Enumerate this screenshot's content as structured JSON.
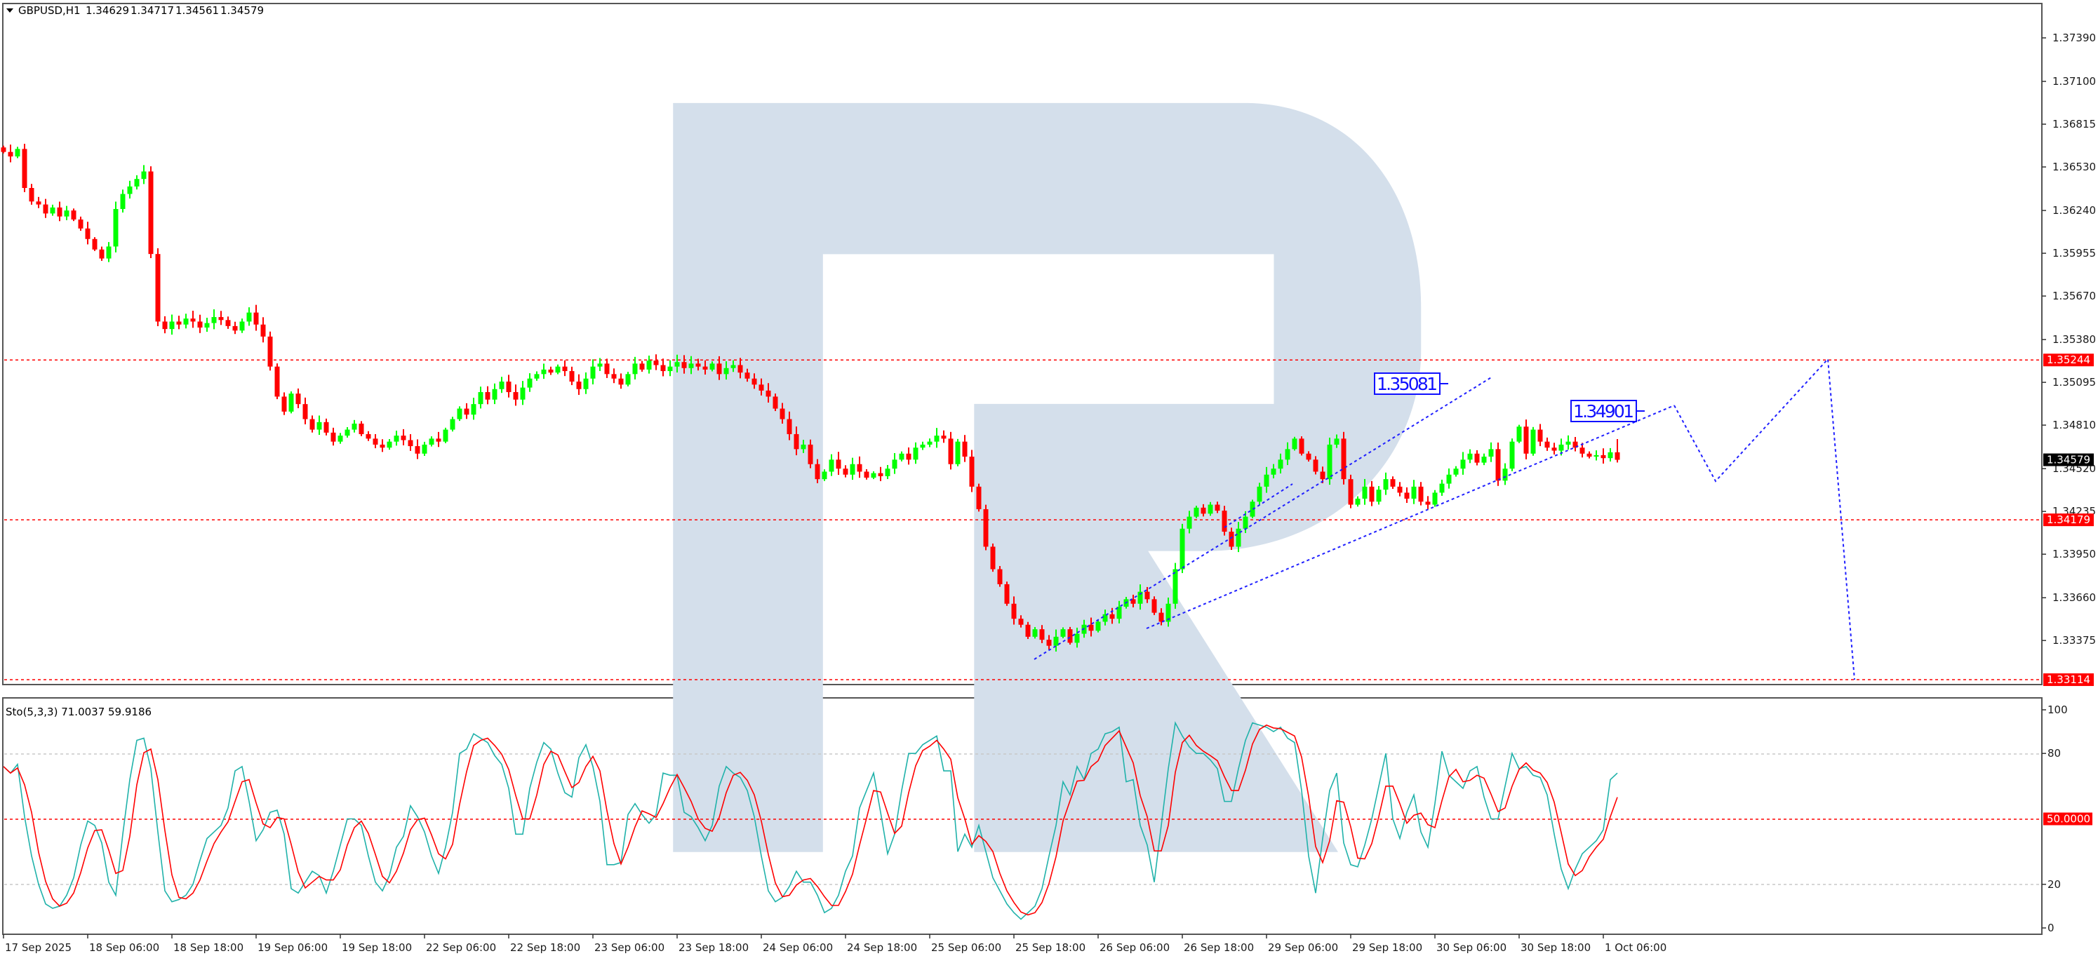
{
  "header": {
    "symbol": "GBPUSD,H1",
    "open": "1.34629",
    "high": "1.34717",
    "low": "1.34561",
    "close": "1.34579"
  },
  "colors": {
    "bull": "#00ff00",
    "bear": "#ff0000",
    "level": "#ff0000",
    "forecast": "#2020ff",
    "stoch_k": "#20b2aa",
    "stoch_d": "#ff0000",
    "watermark": "#d4dfeb"
  },
  "price_axis": {
    "ticks": [
      "1.37390",
      "1.37100",
      "1.36815",
      "1.36530",
      "1.36240",
      "1.35955",
      "1.35670",
      "1.35380",
      "1.35095",
      "1.34810",
      "1.34520",
      "1.34235",
      "1.33950",
      "1.33660",
      "1.33375"
    ],
    "current_price": "1.34579"
  },
  "levels": [
    {
      "price": "1.35244"
    },
    {
      "price": "1.34179"
    },
    {
      "price": "1.33114"
    }
  ],
  "forecast_labels": [
    "1.35081",
    "1.34901"
  ],
  "time_axis": {
    "labels": [
      "17 Sep 2025",
      "18 Sep 06:00",
      "18 Sep 18:00",
      "19 Sep 06:00",
      "19 Sep 18:00",
      "22 Sep 06:00",
      "22 Sep 18:00",
      "23 Sep 06:00",
      "23 Sep 18:00",
      "24 Sep 06:00",
      "24 Sep 18:00",
      "25 Sep 06:00",
      "25 Sep 18:00",
      "26 Sep 06:00",
      "26 Sep 18:00",
      "29 Sep 06:00",
      "29 Sep 18:00",
      "30 Sep 06:00",
      "30 Sep 18:00",
      "1 Oct 06:00"
    ]
  },
  "stochastic": {
    "label": "Sto(5,3,3) 71.0037 59.9186",
    "levels": [
      "100",
      "80",
      "20",
      "0"
    ],
    "mid_level": "50.0000"
  },
  "chart_data": [
    {
      "type": "candlestick",
      "title": "GBPUSD,H1",
      "closes": [
        1.3663,
        1.366,
        1.3665,
        1.3639,
        1.363,
        1.3628,
        1.3622,
        1.3626,
        1.362,
        1.3624,
        1.3618,
        1.3612,
        1.3605,
        1.3598,
        1.3592,
        1.36,
        1.3625,
        1.3635,
        1.364,
        1.3645,
        1.365,
        1.3595,
        1.355,
        1.3545,
        1.355,
        1.3548,
        1.3552,
        1.355,
        1.3546,
        1.3549,
        1.3553,
        1.3551,
        1.3547,
        1.3544,
        1.355,
        1.3556,
        1.3548,
        1.354,
        1.352,
        1.35,
        1.349,
        1.3502,
        1.3495,
        1.3485,
        1.3478,
        1.3483,
        1.3476,
        1.347,
        1.3474,
        1.3478,
        1.3482,
        1.3475,
        1.3472,
        1.3468,
        1.3466,
        1.347,
        1.3474,
        1.3471,
        1.3467,
        1.3462,
        1.3468,
        1.3472,
        1.347,
        1.3478,
        1.3485,
        1.3492,
        1.3488,
        1.3495,
        1.3503,
        1.3498,
        1.3505,
        1.351,
        1.3503,
        1.3498,
        1.3506,
        1.3512,
        1.3515,
        1.3518,
        1.3516,
        1.352,
        1.3517,
        1.351,
        1.3505,
        1.3512,
        1.352,
        1.3522,
        1.3515,
        1.3512,
        1.3508,
        1.3515,
        1.3522,
        1.3518,
        1.3524,
        1.3521,
        1.3517,
        1.352,
        1.3523,
        1.3519,
        1.3522,
        1.352,
        1.3518,
        1.3522,
        1.3515,
        1.3519,
        1.3521,
        1.3516,
        1.3512,
        1.3508,
        1.3504,
        1.35,
        1.3492,
        1.3485,
        1.3475,
        1.3465,
        1.3468,
        1.3455,
        1.3445,
        1.345,
        1.3458,
        1.3452,
        1.3448,
        1.3455,
        1.345,
        1.3446,
        1.3449,
        1.3447,
        1.3452,
        1.3458,
        1.3462,
        1.3458,
        1.3466,
        1.3468,
        1.347,
        1.3474,
        1.3472,
        1.3455,
        1.347,
        1.346,
        1.344,
        1.3425,
        1.34,
        1.3385,
        1.3375,
        1.3362,
        1.3352,
        1.3348,
        1.334,
        1.3345,
        1.3338,
        1.3334,
        1.334,
        1.3345,
        1.3336,
        1.3342,
        1.3348,
        1.3344,
        1.335,
        1.3355,
        1.3352,
        1.336,
        1.3365,
        1.3362,
        1.337,
        1.3365,
        1.3356,
        1.335,
        1.3362,
        1.3385,
        1.3412,
        1.342,
        1.3426,
        1.3422,
        1.3428,
        1.3424,
        1.341,
        1.34,
        1.3412,
        1.342,
        1.343,
        1.344,
        1.3448,
        1.3452,
        1.3458,
        1.3465,
        1.3472,
        1.3462,
        1.3458,
        1.345,
        1.3445,
        1.3468,
        1.3472,
        1.3445,
        1.3428,
        1.3432,
        1.344,
        1.343,
        1.3438,
        1.3445,
        1.344,
        1.3436,
        1.3432,
        1.344,
        1.343,
        1.3428,
        1.3436,
        1.3442,
        1.3448,
        1.3452,
        1.3458,
        1.3462,
        1.3456,
        1.346,
        1.3465,
        1.3444,
        1.3452,
        1.347,
        1.348,
        1.3462,
        1.3478,
        1.347,
        1.3466,
        1.3464,
        1.3468,
        1.347,
        1.3466,
        1.3462,
        1.346,
        1.3461,
        1.3459,
        1.34629,
        1.34579
      ],
      "last_bar": {
        "open": 1.34629,
        "high": 1.34717,
        "low": 1.34561,
        "close": 1.34579
      },
      "ylim": [
        1.3305,
        1.3755
      ],
      "horizontal_levels": [
        1.35244,
        1.34179,
        1.33114
      ]
    },
    {
      "type": "line",
      "title": "Sto(5,3,3)",
      "ylim": [
        0,
        100
      ],
      "reference_lines": [
        80,
        50,
        20
      ],
      "series": [
        {
          "name": "%K",
          "values": [
            74,
            71,
            75,
            51,
            33,
            20,
            11,
            9,
            10,
            15,
            23,
            38,
            49,
            47,
            39,
            21,
            15,
            43,
            68,
            86,
            87,
            73,
            44,
            17,
            12,
            13,
            15,
            20,
            31,
            41,
            44,
            47,
            55,
            72,
            74,
            58,
            40,
            45,
            53,
            54,
            43,
            18,
            16,
            21,
            26,
            24,
            16,
            26,
            38,
            50,
            50,
            47,
            33,
            21,
            17,
            24,
            37,
            42,
            56,
            51,
            44,
            33,
            25,
            37,
            53,
            80,
            82,
            89,
            87,
            85,
            79,
            75,
            64,
            43,
            43,
            64,
            76,
            85,
            82,
            71,
            62,
            60,
            78,
            84,
            74,
            58,
            29,
            29,
            30,
            52,
            57,
            52,
            48,
            52,
            71,
            70,
            70,
            53,
            51,
            46,
            40,
            47,
            65,
            74,
            71,
            69,
            63,
            51,
            33,
            17,
            12,
            14,
            19,
            26,
            21,
            21,
            15,
            7,
            9,
            15,
            26,
            33,
            55,
            63,
            71,
            53,
            34,
            43,
            63,
            80,
            80,
            84,
            86,
            88,
            72,
            72,
            35,
            43,
            37,
            47,
            35,
            23,
            17,
            11,
            7,
            4,
            7,
            10,
            18,
            33,
            47,
            67,
            61,
            74,
            68,
            80,
            82,
            89,
            90,
            92,
            67,
            68,
            47,
            38,
            21,
            47,
            73,
            94,
            88,
            83,
            80,
            80,
            77,
            73,
            58,
            58,
            73,
            86,
            94,
            93,
            92,
            90,
            92,
            87,
            85,
            63,
            33,
            16,
            41,
            63,
            71,
            39,
            29,
            28,
            38,
            50,
            65,
            80,
            50,
            41,
            53,
            61,
            44,
            37,
            57,
            81,
            70,
            67,
            64,
            72,
            74,
            60,
            50,
            50,
            65,
            80,
            73,
            74,
            70,
            69,
            61,
            43,
            27,
            18,
            27,
            34,
            37,
            40,
            45,
            68,
            71.0037
          ]
        },
        {
          "name": "%D",
          "last": 59.9186
        }
      ]
    }
  ]
}
